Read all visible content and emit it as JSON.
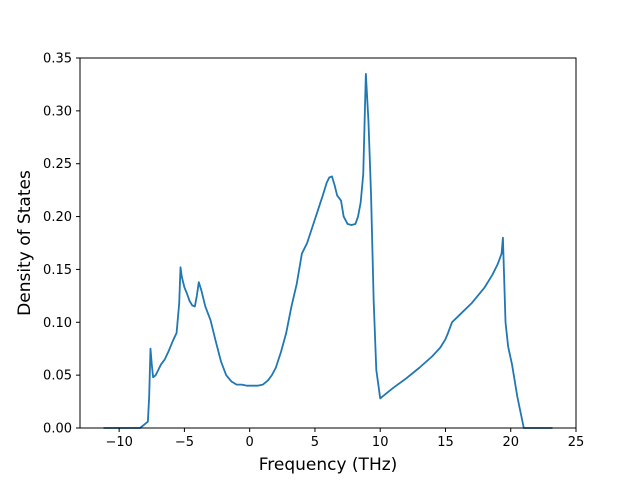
{
  "chart_data": {
    "type": "line",
    "title": "",
    "xlabel": "Frequency (THz)",
    "ylabel": "Density of States",
    "xlim": [
      -13,
      25
    ],
    "ylim": [
      0,
      0.35
    ],
    "xticks": [
      -10,
      -5,
      0,
      5,
      10,
      15,
      20,
      25
    ],
    "xtick_labels": [
      "−10",
      "−5",
      "0",
      "5",
      "10",
      "15",
      "20",
      "25"
    ],
    "yticks": [
      0.0,
      0.05,
      0.1,
      0.15,
      0.2,
      0.25,
      0.3,
      0.35
    ],
    "ytick_labels": [
      "0.00",
      "0.05",
      "0.10",
      "0.15",
      "0.20",
      "0.25",
      "0.30",
      "0.35"
    ],
    "grid": false,
    "color": "#1f77b4",
    "series": [
      {
        "x": [
          -11.2,
          -10.0,
          -9.0,
          -8.4,
          -8.0,
          -7.9,
          -7.8,
          -7.7,
          -7.6,
          -7.5,
          -7.4,
          -7.2,
          -7.0,
          -6.8,
          -6.5,
          -6.2,
          -5.9,
          -5.6,
          -5.4,
          -5.3,
          -5.2,
          -5.0,
          -4.8,
          -4.6,
          -4.4,
          -4.2,
          -4.05,
          -3.9,
          -3.7,
          -3.4,
          -3.0,
          -2.6,
          -2.2,
          -1.8,
          -1.4,
          -1.0,
          -0.6,
          -0.2,
          0.2,
          0.6,
          1.0,
          1.4,
          1.7,
          2.0,
          2.4,
          2.8,
          3.2,
          3.6,
          4.0,
          4.2,
          4.4,
          4.8,
          5.2,
          5.6,
          5.9,
          6.1,
          6.3,
          6.5,
          6.7,
          7.0,
          7.2,
          7.5,
          7.8,
          8.1,
          8.3,
          8.5,
          8.7,
          8.9,
          9.1,
          9.3,
          9.5,
          9.7,
          10.0,
          10.5,
          11.0,
          12.0,
          13.0,
          14.0,
          14.6,
          15.0,
          15.2,
          15.5,
          16.0,
          17.0,
          18.0,
          18.6,
          19.0,
          19.3,
          19.4,
          19.6,
          19.8,
          20.1,
          20.3,
          20.5,
          21.0,
          22.0,
          23.2
        ],
        "y": [
          0.0,
          0.0,
          0.0,
          0.0,
          0.004,
          0.005,
          0.006,
          0.03,
          0.075,
          0.06,
          0.048,
          0.05,
          0.055,
          0.06,
          0.065,
          0.073,
          0.082,
          0.09,
          0.118,
          0.152,
          0.143,
          0.133,
          0.127,
          0.12,
          0.116,
          0.115,
          0.125,
          0.138,
          0.13,
          0.115,
          0.102,
          0.082,
          0.063,
          0.05,
          0.044,
          0.041,
          0.041,
          0.04,
          0.04,
          0.04,
          0.041,
          0.045,
          0.05,
          0.057,
          0.072,
          0.09,
          0.115,
          0.136,
          0.165,
          0.17,
          0.175,
          0.19,
          0.205,
          0.22,
          0.232,
          0.237,
          0.238,
          0.23,
          0.22,
          0.215,
          0.2,
          0.193,
          0.192,
          0.193,
          0.2,
          0.213,
          0.24,
          0.335,
          0.29,
          0.22,
          0.12,
          0.055,
          0.028,
          0.033,
          0.038,
          0.047,
          0.057,
          0.068,
          0.076,
          0.084,
          0.09,
          0.1,
          0.106,
          0.118,
          0.133,
          0.145,
          0.155,
          0.165,
          0.18,
          0.1,
          0.077,
          0.06,
          0.045,
          0.03,
          0.0,
          0.0,
          0.0
        ]
      }
    ]
  }
}
